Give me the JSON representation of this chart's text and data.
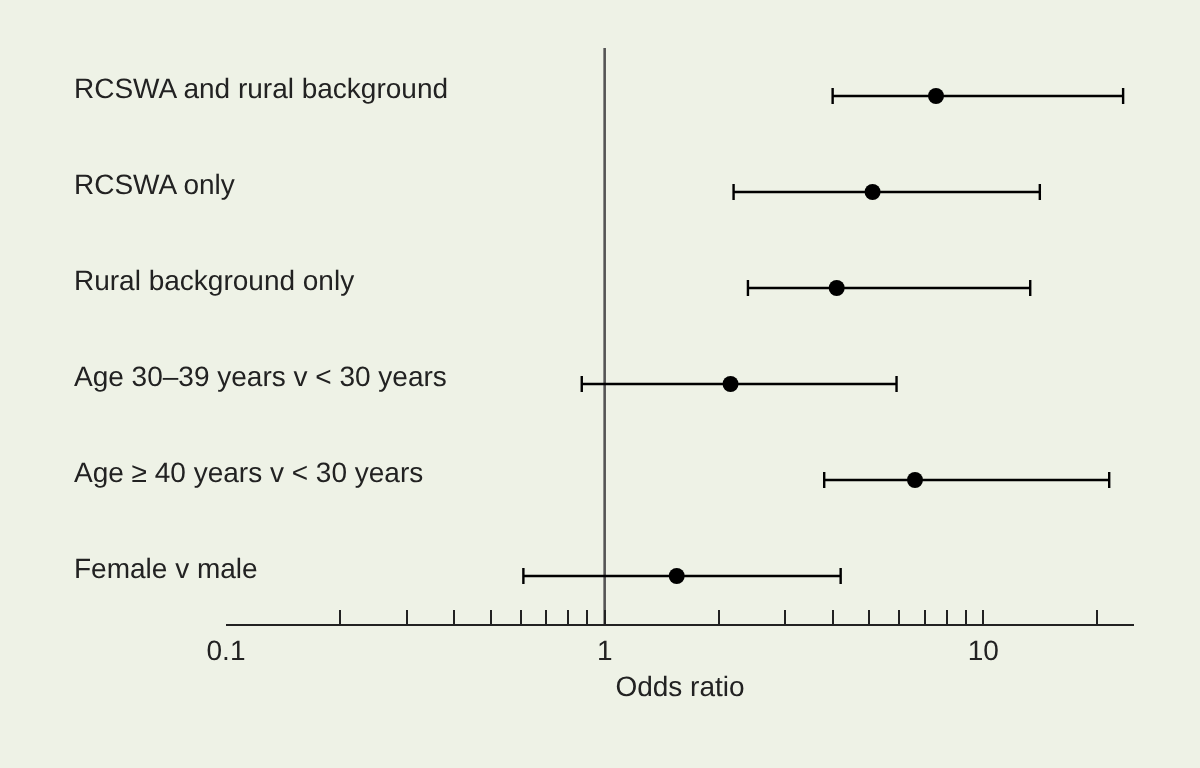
{
  "chart_data": {
    "type": "scatter",
    "orientation": "horizontal",
    "categories": [
      "RCSWA and rural background",
      "RCSWA only",
      "Rural background only",
      "Age 30–39 years v < 30 years",
      "Age ≥ 40 years v < 30 years",
      "Female v male"
    ],
    "values": [
      7.5,
      5.1,
      4.1,
      2.15,
      6.6,
      1.55
    ],
    "errors": [
      [
        4.0,
        23.4
      ],
      [
        2.19,
        14.1
      ],
      [
        2.39,
        13.3
      ],
      [
        0.87,
        5.9
      ],
      [
        3.8,
        21.5
      ],
      [
        0.61,
        4.2
      ]
    ],
    "color": "#000000",
    "xlabel": "Odds ratio",
    "log": "x",
    "xlim": [
      0.1,
      25
    ],
    "xticks": [
      0.1,
      {
        "value": 0.2,
        "label": null
      },
      {
        "value": 0.3,
        "label": null
      },
      {
        "value": 0.4,
        "label": null
      },
      {
        "value": 0.5,
        "label": null
      },
      {
        "value": 0.6,
        "label": null
      },
      {
        "value": 0.7,
        "label": null
      },
      {
        "value": 0.8,
        "label": null
      },
      {
        "value": 0.9,
        "label": null
      },
      1,
      {
        "value": 2,
        "label": null
      },
      {
        "value": 3,
        "label": null
      },
      {
        "value": 4,
        "label": null
      },
      {
        "value": 5,
        "label": null
      },
      {
        "value": 6,
        "label": null
      },
      {
        "value": 7,
        "label": null
      },
      {
        "value": 8,
        "label": null
      },
      {
        "value": 9,
        "label": null
      },
      10,
      {
        "value": 20,
        "label": null
      }
    ],
    "ref_lines": [
      {
        "axis": "x",
        "value": 1,
        "color": "#555555"
      }
    ],
    "marker": "circle",
    "grid": false,
    "legend": false
  }
}
